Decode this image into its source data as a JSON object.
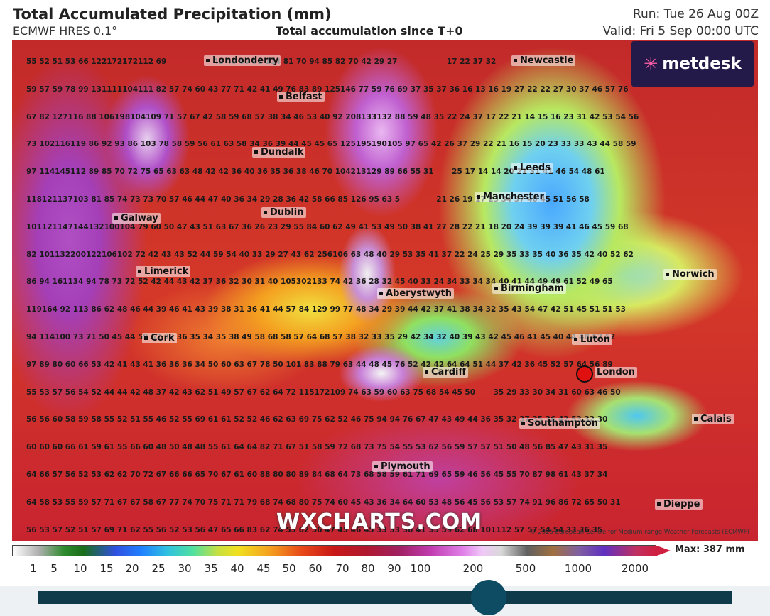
{
  "header": {
    "title": "Total Accumulated Precipitation (mm)",
    "model": "ECMWF HRES 0.1°",
    "subtitle": "Total accumulation since T+0",
    "run": "Run: Tue 26 Aug 00Z",
    "valid": "Valid: Fri 5 Sep 00:00 UTC"
  },
  "logo": {
    "text": "metdesk",
    "icon": "metdesk-logo-icon"
  },
  "watermark": "WXCHARTS.COM",
  "copyright": "© 2025 European Centre for Medium-range Weather Forecasts (ECMWF)",
  "cities": {
    "londonderry": "Londonderry",
    "newcastle": "Newcastle",
    "belfast": "Belfast",
    "dundalk": "Dundalk",
    "leeds": "Leeds",
    "manchester": "Manchester",
    "dublin": "Dublin",
    "galway": "Galway",
    "limerick": "Limerick",
    "norwich": "Norwich",
    "aberystwyth": "Aberystwyth",
    "birmingham": "Birmingham",
    "cork": "Cork",
    "luton": "Luton",
    "cardiff": "Cardiff",
    "london": "London",
    "southampton": "Southampton",
    "calais": "Calais",
    "plymouth": "Plymouth",
    "dieppe": "Dieppe"
  },
  "grid_values": [
    "55 52 51 53 66 122172172112 69                  42 40 60 91 114 81 70 94 85 82 70 42 29 27                   17 22 37 32",
    "59 57 59 78 99 131111104111 82 57 74 60 43 77 71 42 41 49 76 83 89 125146 77 59 76 69 37 35 37 36 16 13 16 19 27 22 22 27 30 37 46 57 76",
    "67 82 127116 88 106198104109 71 57 67 42 58 59 68 57 38 34 46 53 40 92 208133132 88 59 48 35 22 24 37 17 22 21 14 15 16 23 31 42 53 54 56",
    "73 102116119 86 92 93 86 103 78 58 59 56 61 63 58 34 36 39 44 45 45 65 125195190105 97 65 42 26 37 29 22 21 16 15 20 23 33 33 43 44 58 59",
    "97 114145112 89 85 70 72 75 65 63 63 48 42 42 36 40 36 35 36 38 46 70 104213129 89 66 55 31       25 17 14 14 20 21 31 41 46 54 48 61",
    "118121137103 81 85 74 73 73 70 57 46 44 47 40 36 34 29 28 36 42 58 66 85 126 95 63 5              21 26 19 17 23 34 37 40 45 51 56 58",
    "101121147144132100104 79 60 50 47 43 51 63 67 36 26 23 29 55 84 60 62 49 41 53 49 50 38 41 27 28 22 21 18 20 24 39 39 39 41 46 45 59 68",
    "82 101132200122106102 72 42 43 43 52 44 59 54 40 33 29 27 43 62 256106 63 48 40 29 53 35 41 37 22 24 25 29 35 33 35 40 36 35 42 40 52 62",
    "86 94 161134 94 78 73 72 52 42 44 43 42 37 36 32 30 31 40 105302133 74 42 36 28 32 45 40 33 24 34 33 34 34 40 41 44 49 49 61 52 49 65",
    "119164 92 113 86 62 48 46 44 39 46 41 43 39 38 31 36 41 44 57 84 129 99 77 48 34 29 39 44 42 37 41 38 34 32 35 43 54 47 42 51 45 51 51 53",
    "94 114100 73 71 50 45 44 59 52 39 36 35 34 35 38 49 58 68 58 57 64 68 57 38 32 33 35 29 42 34 32 40 39 43 42 45 46 41 45 40 44 48 52 52",
    "97 89 80 60 66 53 42 41 43 41 36 36 36 34 50 60 63 67 78 50 101 83 88 79 63 44 48 45 76 52 42 42 64 64 51 44 37 42 36 45 52 57 64 56 89",
    "55 53 57 56 54 52 44 44 42 48 37 42 43 62 51 49 57 67 62 64 72 115172109 74 63 59 60 63 75 68 54 45 50       35 29 33 30 34 31 60 63 46 50",
    "56 56 60 58 59 58 55 52 51 55 46 52 55 69 61 61 52 52 46 62 63 69 75 62 52 46 75 94 94 76 67 47 43 49 44 36 35 32 37 35 36 42 53 32 30",
    "60 60 60 66 61 59 61 55 66 60 48 50 48 48 55 61 64 64 82 71 67 51 58 59 72 68 73 75 54 55 53 62 56 59 57 57 51 50 48 56 85 47 43 31 35",
    "64 66 57 56 52 53 62 62 70 72 67 66 66 65 70 67 61 60 88 80 80 89 84 68 64 73 68 58 59 61 71 69 65 59 46 56 45 55 70 87 98 61 43 37 34",
    "64 58 53 55 59 57 71 67 67 58 67 77 74 70 75 71 71 79 68 74 68 80 75 74 60 45 43 36 34 64 60 53 48 56 45 56 53 57 74 91 96 86 72 65 50 31",
    "56 53 57 52 51 57 69 71 62 55 56 52 53 56 47 65 66 83 62 74 53 62 56 47 45 46 45 33 33 36 41 35 59 62 68 101112 57 57 54 54 33 36 35"
  ],
  "colorbar": {
    "max_label": "Max: 387 mm",
    "ticks": [
      "1",
      "5",
      "10",
      "15",
      "20",
      "25",
      "30",
      "35",
      "40",
      "45",
      "50",
      "60",
      "70",
      "80",
      "90",
      "100",
      "200",
      "500",
      "1000",
      "2000"
    ]
  },
  "slider": {
    "position_fraction": 0.65
  }
}
